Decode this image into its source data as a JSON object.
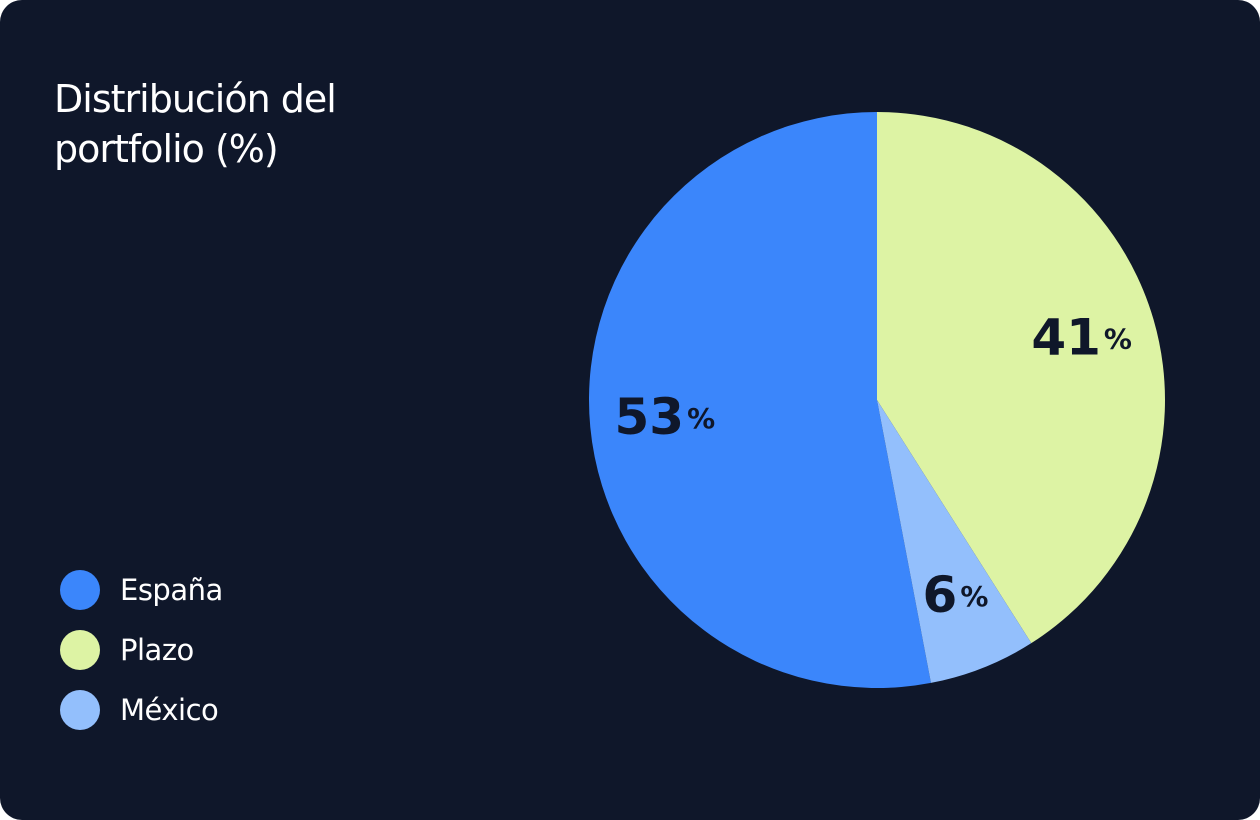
{
  "chart_data": {
    "type": "pie",
    "title": "Distribución del portfolio (%)",
    "categories": [
      "España",
      "Plazo",
      "México"
    ],
    "values": [
      53,
      41,
      6
    ],
    "value_labels": [
      "53%",
      "41%",
      "6%"
    ],
    "colors": [
      "#3b86fb",
      "#ddf3a4",
      "#93bffc"
    ]
  }
}
